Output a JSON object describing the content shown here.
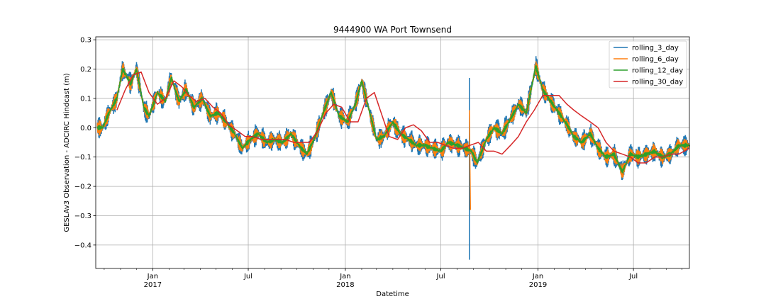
{
  "chart_data": {
    "type": "line",
    "title": "9444900 WA Port Townsend",
    "xlabel": "Datetime",
    "ylabel": "GESLAv3 Observation - ADCIRC Hindcast (m)",
    "xlim": [
      "2016-09-15",
      "2019-10-15"
    ],
    "ylim": [
      -0.48,
      0.31
    ],
    "yticks": [
      0.3,
      0.2,
      0.1,
      0.0,
      -0.1,
      -0.2,
      -0.3,
      -0.4
    ],
    "ytick_labels": [
      "0.3",
      "0.2",
      "0.1",
      "0.0",
      "−0.1",
      "−0.2",
      "−0.3",
      "−0.4"
    ],
    "xticks_major": [
      {
        "date": "2017-01-01",
        "label": "Jan",
        "sublabel": "2017"
      },
      {
        "date": "2017-07-01",
        "label": "Jul",
        "sublabel": ""
      },
      {
        "date": "2018-01-01",
        "label": "Jan",
        "sublabel": "2018"
      },
      {
        "date": "2018-07-01",
        "label": "Jul",
        "sublabel": ""
      },
      {
        "date": "2019-01-01",
        "label": "Jan",
        "sublabel": "2019"
      },
      {
        "date": "2019-07-01",
        "label": "Jul",
        "sublabel": ""
      }
    ],
    "grid": true,
    "legend_position": "top-right",
    "series": [
      {
        "name": "rolling_30_day",
        "color": "#d62728",
        "x": [
          "2016-10-25",
          "2016-11-10",
          "2016-11-25",
          "2016-12-10",
          "2016-12-25",
          "2017-01-10",
          "2017-01-25",
          "2017-02-10",
          "2017-02-25",
          "2017-03-10",
          "2017-03-25",
          "2017-04-10",
          "2017-04-25",
          "2017-05-10",
          "2017-05-25",
          "2017-06-10",
          "2017-06-25",
          "2017-07-10",
          "2017-07-25",
          "2017-08-10",
          "2017-08-25",
          "2017-09-10",
          "2017-09-25",
          "2017-10-10",
          "2017-10-25",
          "2017-11-10",
          "2017-11-25",
          "2017-12-10",
          "2017-12-25",
          "2018-01-10",
          "2018-01-25",
          "2018-02-10",
          "2018-02-25",
          "2018-03-10",
          "2018-03-25",
          "2018-04-10",
          "2018-04-25",
          "2018-05-10",
          "2018-05-25",
          "2018-06-10",
          "2018-06-25",
          "2018-07-10",
          "2018-07-25",
          "2018-08-10",
          "2018-08-25",
          "2018-09-10",
          "2018-09-25",
          "2018-10-10",
          "2018-10-25",
          "2018-11-10",
          "2018-11-25",
          "2018-12-10",
          "2018-12-25",
          "2019-01-10",
          "2019-01-25",
          "2019-02-10",
          "2019-02-25",
          "2019-03-10",
          "2019-03-25",
          "2019-04-10",
          "2019-04-25",
          "2019-05-10",
          "2019-05-25",
          "2019-06-10",
          "2019-06-25",
          "2019-07-10",
          "2019-07-25",
          "2019-08-10",
          "2019-08-25",
          "2019-09-10",
          "2019-09-25",
          "2019-10-15"
        ],
        "y": [
          0.06,
          0.13,
          0.18,
          0.19,
          0.12,
          0.08,
          0.1,
          0.16,
          0.14,
          0.11,
          0.09,
          0.1,
          0.07,
          0.05,
          0.01,
          -0.01,
          -0.03,
          -0.03,
          -0.04,
          -0.04,
          -0.04,
          -0.04,
          -0.05,
          -0.05,
          -0.05,
          -0.01,
          0.05,
          0.08,
          0.07,
          0.02,
          0.02,
          0.1,
          0.12,
          0.05,
          -0.03,
          -0.04,
          0.0,
          0.01,
          -0.01,
          -0.05,
          -0.05,
          -0.06,
          -0.07,
          -0.07,
          -0.06,
          -0.05,
          -0.08,
          -0.08,
          -0.09,
          -0.06,
          -0.03,
          0.02,
          0.06,
          0.11,
          0.11,
          0.11,
          0.08,
          0.06,
          0.04,
          0.02,
          0.0,
          -0.05,
          -0.08,
          -0.09,
          -0.1,
          -0.12,
          -0.12,
          -0.1,
          -0.1,
          -0.09,
          -0.09,
          -0.07
        ]
      },
      {
        "name": "rolling_12_day",
        "color": "#2ca02c",
        "x": [
          "2016-09-28",
          "2016-10-10",
          "2016-10-25",
          "2016-11-05",
          "2016-11-20",
          "2016-12-01",
          "2016-12-15",
          "2016-12-25",
          "2017-01-10",
          "2017-01-25",
          "2017-02-05",
          "2017-02-20",
          "2017-03-05",
          "2017-03-20",
          "2017-04-05",
          "2017-04-20",
          "2017-05-05",
          "2017-05-20",
          "2017-06-05",
          "2017-06-20",
          "2017-07-05",
          "2017-07-20",
          "2017-08-05",
          "2017-08-20",
          "2017-09-05",
          "2017-09-20",
          "2017-10-05",
          "2017-10-20",
          "2017-11-05",
          "2017-11-20",
          "2017-12-05",
          "2017-12-20",
          "2018-01-05",
          "2018-01-20",
          "2018-02-01",
          "2018-02-15",
          "2018-03-01",
          "2018-03-15",
          "2018-04-01",
          "2018-04-15",
          "2018-05-01",
          "2018-05-15",
          "2018-06-01",
          "2018-06-15",
          "2018-07-01",
          "2018-07-15",
          "2018-08-01",
          "2018-08-15",
          "2018-08-28",
          "2018-09-08",
          "2018-09-25",
          "2018-10-10",
          "2018-10-25",
          "2018-11-10",
          "2018-11-25",
          "2018-12-10",
          "2018-12-28",
          "2019-01-10",
          "2019-01-25",
          "2019-02-10",
          "2019-02-25",
          "2019-03-10",
          "2019-03-25",
          "2019-04-10",
          "2019-04-25",
          "2019-05-10",
          "2019-05-25",
          "2019-06-10",
          "2019-06-25",
          "2019-07-10",
          "2019-07-25",
          "2019-08-10",
          "2019-08-25",
          "2019-09-10",
          "2019-09-25",
          "2019-10-15"
        ],
        "y": [
          0.0,
          0.05,
          0.1,
          0.2,
          0.15,
          0.2,
          0.07,
          0.04,
          0.12,
          0.09,
          0.17,
          0.09,
          0.13,
          0.07,
          0.1,
          0.04,
          0.05,
          0.02,
          -0.02,
          -0.07,
          -0.04,
          -0.02,
          -0.05,
          -0.04,
          -0.05,
          -0.02,
          -0.06,
          -0.09,
          -0.03,
          0.05,
          0.12,
          0.04,
          0.02,
          0.08,
          0.16,
          0.06,
          -0.04,
          -0.03,
          0.02,
          -0.02,
          -0.04,
          -0.06,
          -0.06,
          -0.07,
          -0.08,
          -0.05,
          -0.06,
          -0.07,
          -0.08,
          -0.12,
          -0.04,
          0.0,
          -0.02,
          0.03,
          0.08,
          0.05,
          0.21,
          0.13,
          0.09,
          0.05,
          0.01,
          -0.03,
          -0.05,
          -0.02,
          -0.07,
          -0.1,
          -0.09,
          -0.15,
          -0.09,
          -0.1,
          -0.09,
          -0.08,
          -0.1,
          -0.09,
          -0.06,
          -0.06
        ]
      },
      {
        "name": "rolling_6_day",
        "color": "#ff7f0e",
        "x": [
          "2018-08-24",
          "2018-08-26"
        ],
        "y": [
          0.06,
          -0.28
        ]
      },
      {
        "name": "rolling_3_day",
        "color": "#1f77b4",
        "x": [
          "2018-08-24",
          "2018-08-25"
        ],
        "y": [
          0.17,
          -0.45
        ]
      }
    ],
    "legend_order": [
      "rolling_3_day",
      "rolling_6_day",
      "rolling_12_day",
      "rolling_30_day"
    ]
  }
}
